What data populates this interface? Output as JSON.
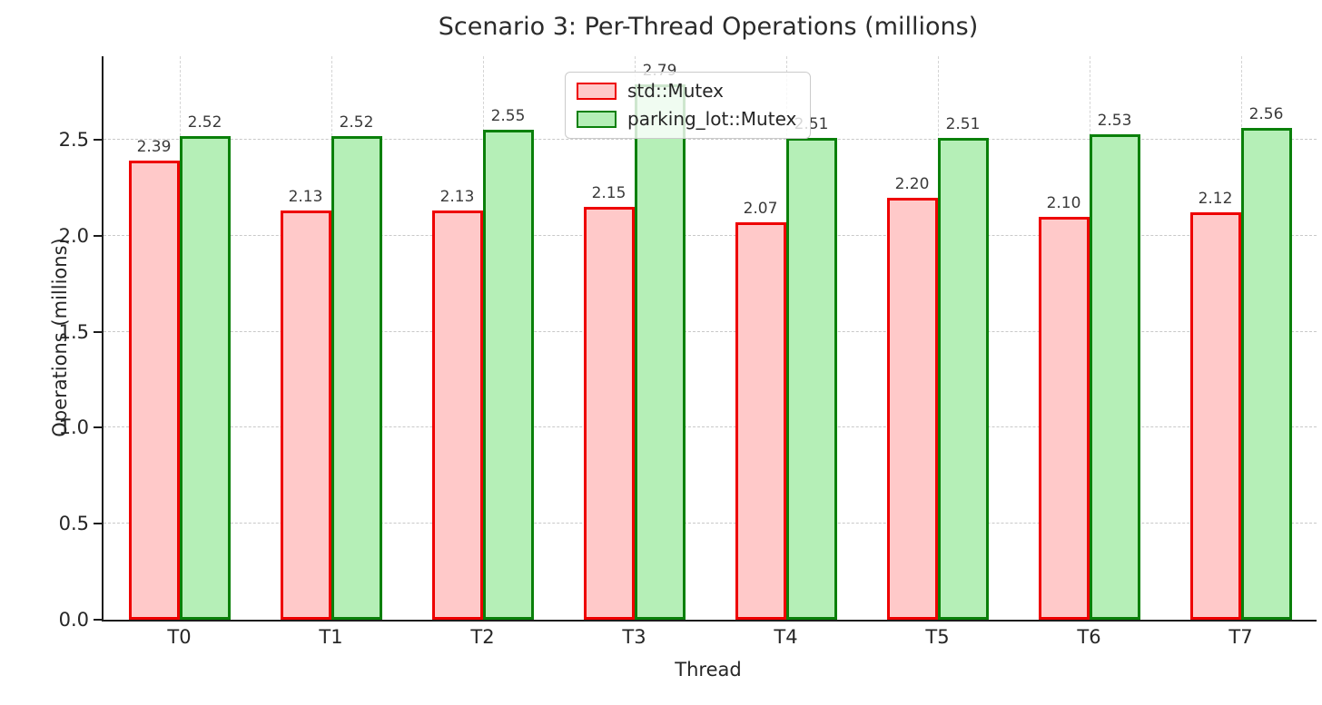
{
  "chart_data": {
    "type": "bar",
    "title": "Scenario 3: Per-Thread Operations (millions)",
    "xlabel": "Thread",
    "ylabel": "Operations (millions)",
    "categories": [
      "T0",
      "T1",
      "T2",
      "T3",
      "T4",
      "T5",
      "T6",
      "T7"
    ],
    "series": [
      {
        "name": "std::Mutex",
        "values": [
          2.39,
          2.13,
          2.13,
          2.15,
          2.07,
          2.2,
          2.1,
          2.12
        ],
        "fill_color": "#ffc9c9",
        "edge_color": "#ee0000"
      },
      {
        "name": "parking_lot::Mutex",
        "values": [
          2.52,
          2.52,
          2.55,
          2.79,
          2.51,
          2.51,
          2.53,
          2.56
        ],
        "fill_color": "#b5efb7",
        "edge_color": "#0a800a"
      }
    ],
    "ylim": [
      0,
      2.935
    ],
    "yticks": [
      0.0,
      0.5,
      1.0,
      1.5,
      2.0,
      2.5
    ],
    "ytick_labels": [
      "0.0",
      "0.5",
      "1.0",
      "1.5",
      "2.0",
      "2.5"
    ],
    "grid": true,
    "grid_style": "dashed",
    "grid_color": "#c9c9c9",
    "legend_position": "upper center",
    "bar_value_labels": true,
    "value_label_decimals": 2,
    "text_color": "#262626",
    "background_color": "#ffffff"
  }
}
